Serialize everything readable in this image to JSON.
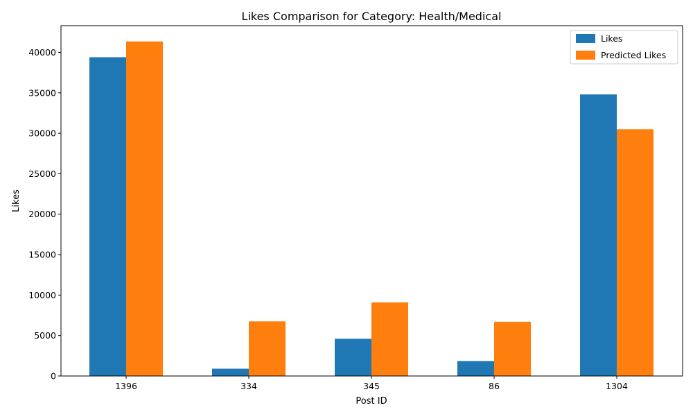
{
  "chart_data": {
    "type": "bar",
    "title": "Likes Comparison for Category: Health/Medical",
    "xlabel": "Post ID",
    "ylabel": "Likes",
    "categories": [
      "1396",
      "334",
      "345",
      "86",
      "1304"
    ],
    "series": [
      {
        "name": "Likes",
        "color": "#1f77b4",
        "values": [
          39400,
          900,
          4600,
          1850,
          34800
        ]
      },
      {
        "name": "Predicted Likes",
        "color": "#ff7f0e",
        "values": [
          41350,
          6750,
          9100,
          6700,
          30500
        ]
      }
    ],
    "ylim": [
      0,
      43300
    ],
    "yticks": [
      0,
      5000,
      10000,
      15000,
      20000,
      25000,
      30000,
      35000,
      40000
    ],
    "grid": false,
    "legend_position": "top-right"
  }
}
